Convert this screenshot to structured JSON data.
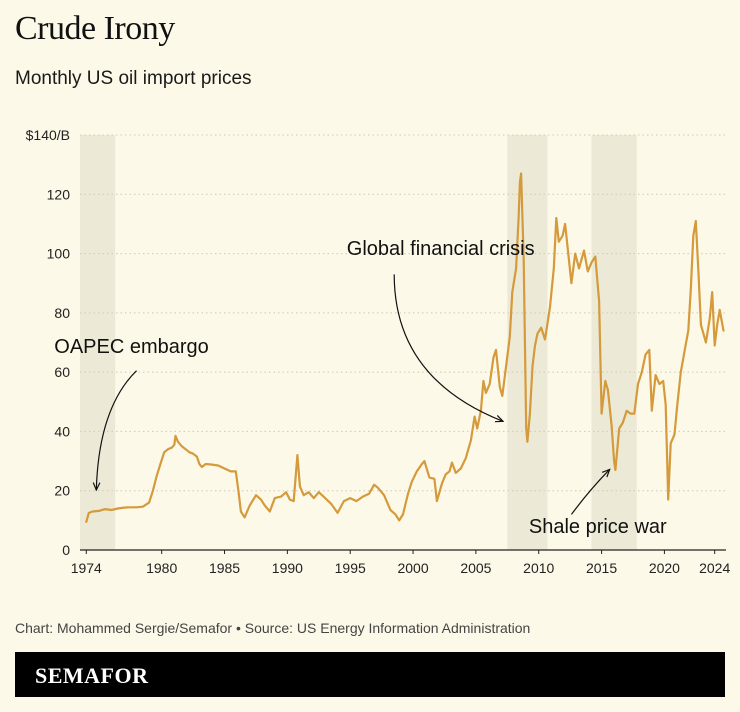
{
  "title": "Crude Irony",
  "subtitle": "Monthly US oil import prices",
  "source": "Chart: Mohammed Sergie/Semafor • Source: US Energy Information Administration",
  "brand": "SEMAFOR",
  "colors": {
    "line": "#d49a3c",
    "band": "#ecead6",
    "grid": "#cfcab4",
    "background": "#fdf9e8"
  },
  "chart_data": {
    "type": "line",
    "title": "Crude Irony",
    "subtitle": "Monthly US oil import prices",
    "xlabel": "",
    "ylabel": "",
    "xlim": [
      1973.5,
      2024.9
    ],
    "ylim": [
      0,
      140
    ],
    "grid": true,
    "x_ticks": [
      {
        "value": 1974,
        "label": "1974"
      },
      {
        "value": 1980,
        "label": "1980"
      },
      {
        "value": 1985,
        "label": "1985"
      },
      {
        "value": 1990,
        "label": "1990"
      },
      {
        "value": 1995,
        "label": "1995"
      },
      {
        "value": 2000,
        "label": "2000"
      },
      {
        "value": 2005,
        "label": "2005"
      },
      {
        "value": 2010,
        "label": "2010"
      },
      {
        "value": 2015,
        "label": "2015"
      },
      {
        "value": 2020,
        "label": "2020"
      },
      {
        "value": 2024,
        "label": "2024"
      }
    ],
    "y_ticks": [
      {
        "value": 0,
        "label": "0"
      },
      {
        "value": 20,
        "label": "20"
      },
      {
        "value": 40,
        "label": "40"
      },
      {
        "value": 60,
        "label": "60"
      },
      {
        "value": 80,
        "label": "80"
      },
      {
        "value": 100,
        "label": "100"
      },
      {
        "value": 120,
        "label": "120"
      },
      {
        "value": 140,
        "label": "$140/B"
      }
    ],
    "shaded_periods": [
      {
        "start": 1973.5,
        "end": 1976.3
      },
      {
        "start": 2007.5,
        "end": 2010.7
      },
      {
        "start": 2014.2,
        "end": 2017.8
      }
    ],
    "annotations": [
      {
        "text": "OAPEC embargo",
        "label_x": 1977.6,
        "label_y": 66.5,
        "anchor": "middle",
        "arrow": {
          "from": [
            1978.0,
            60.5
          ],
          "to": [
            1974.8,
            20.5
          ],
          "curve": [
            1975.0,
            48.0
          ]
        }
      },
      {
        "text": "Global financial crisis",
        "label_x": 2002.2,
        "label_y": 99.5,
        "anchor": "middle",
        "arrow": {
          "from": [
            1998.5,
            93.0
          ],
          "to": [
            2007.1,
            43.5
          ],
          "curve": [
            1998.5,
            58.0
          ]
        }
      },
      {
        "text": "Shale price war",
        "label_x": 2014.7,
        "label_y": 5.7,
        "anchor": "middle",
        "arrow": {
          "from": [
            2012.6,
            12.0
          ],
          "to": [
            2015.6,
            27.0
          ],
          "curve": [
            2014.0,
            20.0
          ]
        }
      }
    ],
    "series": [
      {
        "points": [
          [
            1974.0,
            9.5
          ],
          [
            1974.2,
            12.5
          ],
          [
            1974.5,
            13.0
          ],
          [
            1975.0,
            13.2
          ],
          [
            1975.5,
            13.8
          ],
          [
            1976.0,
            13.5
          ],
          [
            1976.5,
            14.0
          ],
          [
            1977.0,
            14.3
          ],
          [
            1977.5,
            14.4
          ],
          [
            1978.0,
            14.4
          ],
          [
            1978.5,
            14.6
          ],
          [
            1979.0,
            16.0
          ],
          [
            1979.3,
            20.0
          ],
          [
            1979.6,
            25.0
          ],
          [
            1979.9,
            29.0
          ],
          [
            1980.2,
            33.0
          ],
          [
            1980.5,
            34.0
          ],
          [
            1980.8,
            34.5
          ],
          [
            1981.0,
            35.5
          ],
          [
            1981.1,
            38.5
          ],
          [
            1981.3,
            36.5
          ],
          [
            1981.6,
            35.0
          ],
          [
            1981.9,
            34.0
          ],
          [
            1982.2,
            33.0
          ],
          [
            1982.5,
            32.5
          ],
          [
            1982.8,
            31.5
          ],
          [
            1983.0,
            29.0
          ],
          [
            1983.2,
            28.0
          ],
          [
            1983.5,
            29.0
          ],
          [
            1984.0,
            28.8
          ],
          [
            1984.5,
            28.5
          ],
          [
            1985.0,
            27.5
          ],
          [
            1985.5,
            26.5
          ],
          [
            1985.9,
            26.5
          ],
          [
            1986.1,
            20.0
          ],
          [
            1986.3,
            13.0
          ],
          [
            1986.6,
            11.0
          ],
          [
            1987.0,
            15.0
          ],
          [
            1987.5,
            18.5
          ],
          [
            1987.9,
            17.0
          ],
          [
            1988.2,
            15.0
          ],
          [
            1988.6,
            13.0
          ],
          [
            1989.0,
            17.5
          ],
          [
            1989.5,
            18.0
          ],
          [
            1989.9,
            19.5
          ],
          [
            1990.2,
            17.0
          ],
          [
            1990.5,
            16.5
          ],
          [
            1990.8,
            32.0
          ],
          [
            1991.0,
            21.5
          ],
          [
            1991.3,
            18.5
          ],
          [
            1991.7,
            19.5
          ],
          [
            1992.1,
            17.5
          ],
          [
            1992.5,
            19.5
          ],
          [
            1993.0,
            17.5
          ],
          [
            1993.5,
            15.5
          ],
          [
            1994.0,
            12.5
          ],
          [
            1994.5,
            16.5
          ],
          [
            1995.0,
            17.5
          ],
          [
            1995.5,
            16.5
          ],
          [
            1996.0,
            18.0
          ],
          [
            1996.5,
            19.0
          ],
          [
            1996.9,
            22.0
          ],
          [
            1997.2,
            21.0
          ],
          [
            1997.7,
            18.5
          ],
          [
            1998.2,
            13.5
          ],
          [
            1998.6,
            12.0
          ],
          [
            1998.9,
            10.0
          ],
          [
            1999.2,
            12.0
          ],
          [
            1999.6,
            19.0
          ],
          [
            1999.9,
            23.0
          ],
          [
            2000.3,
            26.5
          ],
          [
            2000.7,
            29.0
          ],
          [
            2000.9,
            30.0
          ],
          [
            2001.3,
            24.5
          ],
          [
            2001.7,
            24.0
          ],
          [
            2001.9,
            16.5
          ],
          [
            2002.3,
            22.5
          ],
          [
            2002.6,
            25.5
          ],
          [
            2002.9,
            26.5
          ],
          [
            2003.1,
            29.5
          ],
          [
            2003.4,
            26.0
          ],
          [
            2003.8,
            27.5
          ],
          [
            2004.2,
            31.0
          ],
          [
            2004.6,
            37.0
          ],
          [
            2004.9,
            45.0
          ],
          [
            2005.1,
            41.0
          ],
          [
            2005.4,
            47.0
          ],
          [
            2005.6,
            57.0
          ],
          [
            2005.8,
            53.0
          ],
          [
            2006.1,
            56.0
          ],
          [
            2006.4,
            65.0
          ],
          [
            2006.6,
            67.5
          ],
          [
            2006.9,
            55.0
          ],
          [
            2007.1,
            52.0
          ],
          [
            2007.4,
            62.0
          ],
          [
            2007.7,
            72.0
          ],
          [
            2007.9,
            87.0
          ],
          [
            2008.2,
            95.0
          ],
          [
            2008.4,
            112.0
          ],
          [
            2008.5,
            124.0
          ],
          [
            2008.6,
            127.0
          ],
          [
            2008.8,
            98.0
          ],
          [
            2009.0,
            41.0
          ],
          [
            2009.1,
            36.5
          ],
          [
            2009.3,
            46.0
          ],
          [
            2009.5,
            62.0
          ],
          [
            2009.7,
            69.0
          ],
          [
            2009.9,
            73.0
          ],
          [
            2010.2,
            75.0
          ],
          [
            2010.5,
            71.0
          ],
          [
            2010.9,
            82.0
          ],
          [
            2011.2,
            95.0
          ],
          [
            2011.4,
            112.0
          ],
          [
            2011.6,
            104.0
          ],
          [
            2011.9,
            106.0
          ],
          [
            2012.1,
            110.0
          ],
          [
            2012.4,
            98.0
          ],
          [
            2012.6,
            90.0
          ],
          [
            2012.9,
            100.0
          ],
          [
            2013.2,
            95.0
          ],
          [
            2013.6,
            101.0
          ],
          [
            2013.9,
            94.0
          ],
          [
            2014.2,
            97.0
          ],
          [
            2014.5,
            99.0
          ],
          [
            2014.8,
            84.0
          ],
          [
            2015.0,
            46.0
          ],
          [
            2015.3,
            57.0
          ],
          [
            2015.5,
            54.0
          ],
          [
            2015.8,
            42.0
          ],
          [
            2016.0,
            30.0
          ],
          [
            2016.1,
            27.0
          ],
          [
            2016.4,
            41.0
          ],
          [
            2016.7,
            43.0
          ],
          [
            2017.0,
            47.0
          ],
          [
            2017.3,
            46.0
          ],
          [
            2017.6,
            46.0
          ],
          [
            2017.9,
            56.0
          ],
          [
            2018.2,
            60.0
          ],
          [
            2018.5,
            66.0
          ],
          [
            2018.8,
            67.5
          ],
          [
            2019.0,
            47.0
          ],
          [
            2019.3,
            59.0
          ],
          [
            2019.6,
            56.0
          ],
          [
            2019.9,
            57.0
          ],
          [
            2020.1,
            49.0
          ],
          [
            2020.3,
            17.0
          ],
          [
            2020.5,
            36.0
          ],
          [
            2020.8,
            39.0
          ],
          [
            2021.0,
            48.0
          ],
          [
            2021.3,
            60.0
          ],
          [
            2021.6,
            67.0
          ],
          [
            2021.9,
            74.0
          ],
          [
            2022.1,
            88.0
          ],
          [
            2022.3,
            106.0
          ],
          [
            2022.5,
            111.0
          ],
          [
            2022.7,
            94.0
          ],
          [
            2022.9,
            76.0
          ],
          [
            2023.1,
            73.0
          ],
          [
            2023.3,
            70.0
          ],
          [
            2023.6,
            78.0
          ],
          [
            2023.8,
            87.0
          ],
          [
            2024.0,
            69.0
          ],
          [
            2024.2,
            76.0
          ],
          [
            2024.4,
            81.0
          ],
          [
            2024.7,
            74.0
          ]
        ]
      }
    ]
  }
}
